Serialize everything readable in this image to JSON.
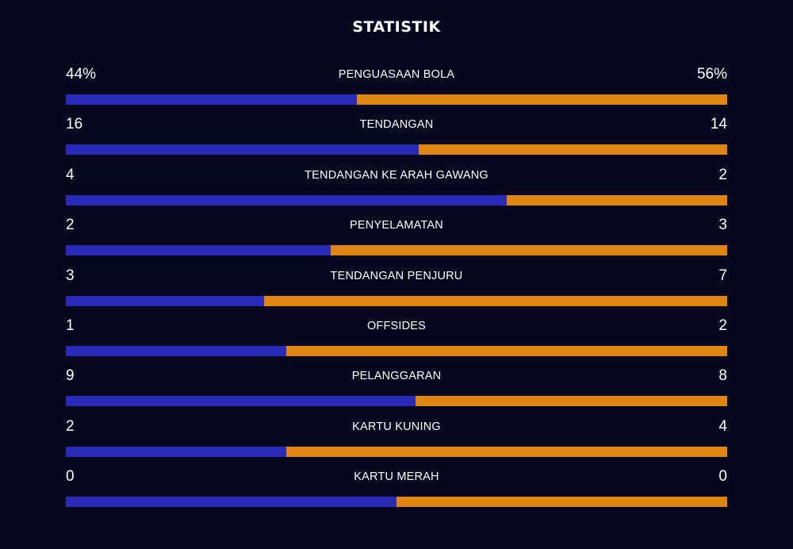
{
  "title": "STATISTIK",
  "colors": {
    "background": "#07071f",
    "home": "#2a2ab8",
    "away": "#e08512"
  },
  "stats": [
    {
      "label": "PENGUASAAN BOLA",
      "left": "44%",
      "right": "56%",
      "left_share": 0.44
    },
    {
      "label": "TENDANGAN",
      "left": "16",
      "right": "14",
      "left_share": 0.533
    },
    {
      "label": "TENDANGAN KE ARAH GAWANG",
      "left": "4",
      "right": "2",
      "left_share": 0.667
    },
    {
      "label": "PENYELAMATAN",
      "left": "2",
      "right": "3",
      "left_share": 0.4
    },
    {
      "label": "TENDANGAN PENJURU",
      "left": "3",
      "right": "7",
      "left_share": 0.3
    },
    {
      "label": "OFFSIDES",
      "left": "1",
      "right": "2",
      "left_share": 0.333
    },
    {
      "label": "PELANGGARAN",
      "left": "9",
      "right": "8",
      "left_share": 0.529
    },
    {
      "label": "KARTU KUNING",
      "left": "2",
      "right": "4",
      "left_share": 0.333
    },
    {
      "label": "KARTU MERAH",
      "left": "0",
      "right": "0",
      "left_share": 0.5
    }
  ]
}
